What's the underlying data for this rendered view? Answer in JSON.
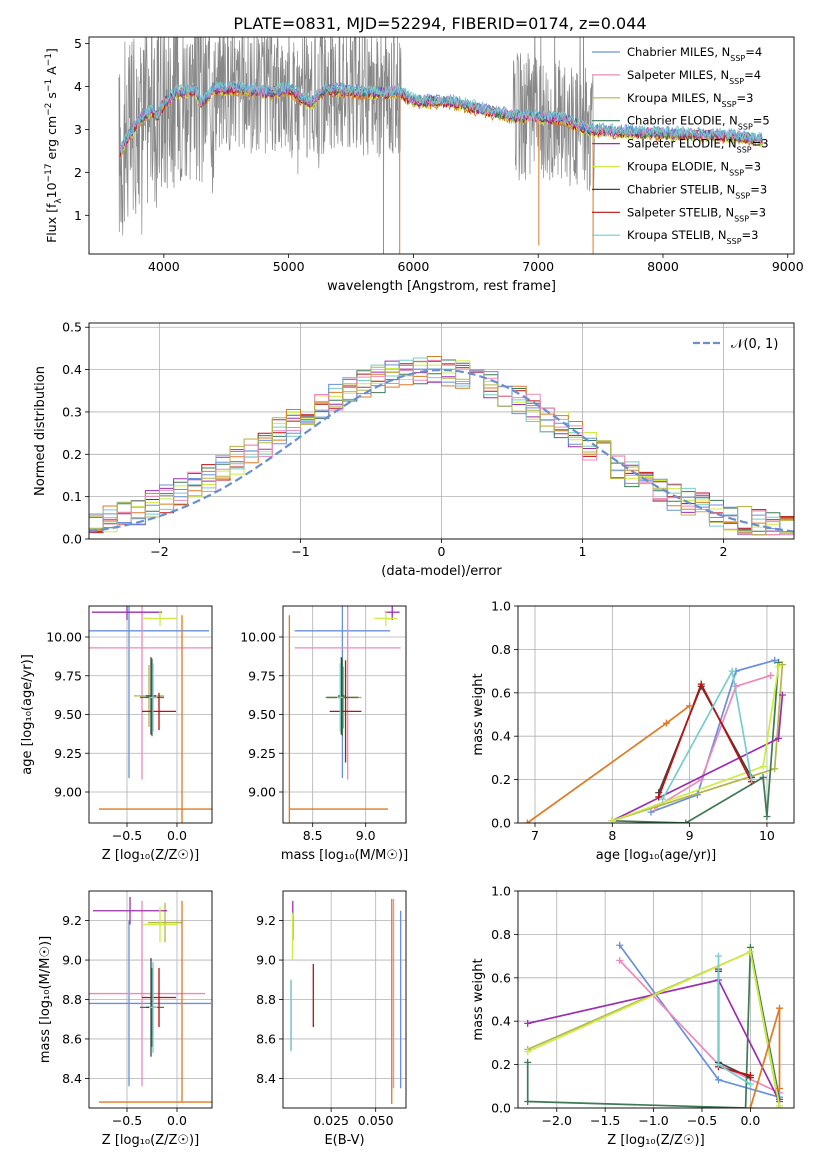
{
  "suptitle": "PLATE=0831, MJD=52294, FIBERID=0174, z=0.044",
  "colors": {
    "c0": "#6890dd",
    "c1": "#ee88bb",
    "c2": "#b5b54a",
    "c3": "#3e7a55",
    "c4": "#9b2fb0",
    "c5": "#ccee44",
    "c6": "#444444",
    "c7": "#bb1111",
    "c8": "#77cccc",
    "data": "#888888",
    "orange": "#e07a20"
  },
  "legend_entries": [
    {
      "pre": "Chabrier MILES, N",
      "sub": "SSP",
      "post": "=4",
      "color": "#6890dd"
    },
    {
      "pre": "Salpeter MILES, N",
      "sub": "SSP",
      "post": "=4",
      "color": "#ee88bb"
    },
    {
      "pre": "Kroupa MILES, N",
      "sub": "SSP",
      "post": "=3",
      "color": "#b5b54a"
    },
    {
      "pre": "Chabrier ELODIE, N",
      "sub": "SSP",
      "post": "=5",
      "color": "#3e7a55"
    },
    {
      "pre": "Salpeter ELODIE, N",
      "sub": "SSP",
      "post": "=3",
      "color": "#9b2fb0"
    },
    {
      "pre": "Kroupa ELODIE, N",
      "sub": "SSP",
      "post": "=3",
      "color": "#ccee44"
    },
    {
      "pre": "Chabrier STELIB, N",
      "sub": "SSP",
      "post": "=3",
      "color": "#444444"
    },
    {
      "pre": "Salpeter STELIB, N",
      "sub": "SSP",
      "post": "=3",
      "color": "#bb1111"
    },
    {
      "pre": "Kroupa STELIB, N",
      "sub": "SSP",
      "post": "=3",
      "color": "#77cccc"
    }
  ],
  "chart_data": [
    {
      "id": "spectrum",
      "type": "line",
      "xlabel": "wavelength [Angstrom, rest frame]",
      "ylabel": {
        "pre": "Flux [f",
        "sub": "λ",
        "mid": "10",
        "sup1": "−17",
        "post": " erg cm",
        "sup2": "−2",
        "post2": " s",
        "sup3": "−1",
        "post3": " A",
        "sup4": "−1",
        "post4": "]"
      },
      "xlim": [
        3400,
        9050
      ],
      "ylim": [
        0.1,
        5.15
      ],
      "xticks": [
        4000,
        5000,
        6000,
        7000,
        8000,
        9000
      ],
      "yticks": [
        1,
        2,
        3,
        4,
        5
      ],
      "continuum_knots": [
        [
          3650,
          2.5
        ],
        [
          3720,
          2.85
        ],
        [
          3800,
          3.2
        ],
        [
          3900,
          3.45
        ],
        [
          3950,
          3.3
        ],
        [
          4000,
          3.6
        ],
        [
          4100,
          3.85
        ],
        [
          4250,
          3.9
        ],
        [
          4300,
          3.6
        ],
        [
          4400,
          3.95
        ],
        [
          4600,
          3.95
        ],
        [
          4860,
          3.85
        ],
        [
          5000,
          3.95
        ],
        [
          5175,
          3.6
        ],
        [
          5300,
          3.95
        ],
        [
          5600,
          3.85
        ],
        [
          5900,
          3.85
        ],
        [
          6000,
          3.65
        ],
        [
          6300,
          3.65
        ],
        [
          6563,
          3.45
        ],
        [
          6800,
          3.3
        ],
        [
          7200,
          3.25
        ],
        [
          7400,
          3.0
        ],
        [
          7600,
          2.95
        ],
        [
          8000,
          2.9
        ],
        [
          8500,
          2.85
        ],
        [
          8800,
          2.75
        ]
      ]
    },
    {
      "id": "residuals",
      "type": "histogram",
      "xlabel": "(data-model)/error",
      "ylabel": "Normed distribution",
      "xlim": [
        -2.5,
        2.5
      ],
      "ylim": [
        0,
        0.51
      ],
      "xticks": [
        -2,
        -1,
        0,
        1,
        2
      ],
      "xtick_labels": [
        "−2",
        "−1",
        "0",
        "1",
        "2"
      ],
      "yticks": [
        0.0,
        0.1,
        0.2,
        0.3,
        0.4,
        0.5
      ],
      "ytick_labels": [
        "0.0",
        "0.1",
        "0.2",
        "0.3",
        "0.4",
        "0.5"
      ],
      "bin_width": 0.1,
      "bin_start": -2.5,
      "reference_label": "𝒩(0, 1)",
      "reference_color": "#6a8fd0"
    },
    {
      "id": "z-vs-age",
      "type": "errorbar",
      "xlabel": "Z [log₁₀(Z/Z☉)]",
      "ylabel": "age  [log₁₀(age/yr)]",
      "xlim": [
        -0.88,
        0.35
      ],
      "ylim": [
        8.8,
        10.2
      ],
      "xticks": [
        -0.5,
        0.0
      ],
      "xtick_labels": [
        "−0.5",
        "0.0"
      ],
      "yticks": [
        9.0,
        9.25,
        9.5,
        9.75,
        10.0
      ],
      "ytick_labels": [
        "9.00",
        "9.25",
        "9.50",
        "9.75",
        "10.00"
      ],
      "points": [
        {
          "x": -0.48,
          "xerr": 0.8,
          "y": 10.04,
          "yerr": 0.95,
          "color": "#6890dd"
        },
        {
          "x": -0.35,
          "xerr": 0.7,
          "y": 9.93,
          "yerr": 0.85,
          "color": "#ee88bb"
        },
        {
          "x": -0.28,
          "xerr": 0.15,
          "y": 9.62,
          "yerr": 0.2,
          "color": "#b5b54a"
        },
        {
          "x": -0.25,
          "xerr": 0.12,
          "y": 9.61,
          "yerr": 0.25,
          "color": "#3e7a55"
        },
        {
          "x": -0.5,
          "xerr": 0.35,
          "y": 10.16,
          "yerr": 0.05,
          "color": "#9b2fb0"
        },
        {
          "x": -0.17,
          "xerr": 0.17,
          "y": 10.12,
          "yerr": 0.05,
          "color": "#ccee44"
        },
        {
          "x": -0.26,
          "xerr": 0.05,
          "y": 9.62,
          "yerr": 0.25,
          "color": "#444444"
        },
        {
          "x": -0.18,
          "xerr": 0.17,
          "y": 9.52,
          "yerr": 0.12,
          "color": "#bb1111"
        },
        {
          "x": -0.24,
          "xerr": 0.04,
          "y": 9.61,
          "yerr": 0.22,
          "color": "#77cccc"
        },
        {
          "x": 0.05,
          "xerr": 0.83,
          "y": 8.89,
          "yerr": 1.25,
          "color": "#e07a20"
        }
      ]
    },
    {
      "id": "mass-vs-age",
      "type": "errorbar",
      "xlabel": "mass [log₁₀(M/M☉)]",
      "ylabel": "",
      "xlim": [
        8.22,
        9.38
      ],
      "ylim": [
        8.8,
        10.2
      ],
      "xticks": [
        8.5,
        9.0
      ],
      "xtick_labels": [
        "8.5",
        "9.0"
      ],
      "yticks": [
        9.0,
        9.25,
        9.5,
        9.75,
        10.0
      ],
      "ytick_labels": [
        "9.00",
        "9.25",
        "9.50",
        "9.75",
        "10.00"
      ],
      "points": [
        {
          "x": 8.78,
          "xerr": 0.45,
          "y": 10.04,
          "yerr": 0.95,
          "color": "#6890dd"
        },
        {
          "x": 8.83,
          "xerr": 0.5,
          "y": 9.93,
          "yerr": 0.85,
          "color": "#ee88bb"
        },
        {
          "x": 8.79,
          "xerr": 0.17,
          "y": 9.61,
          "yerr": 0.2,
          "color": "#b5b54a"
        },
        {
          "x": 8.78,
          "xerr": 0.15,
          "y": 9.61,
          "yerr": 0.25,
          "color": "#3e7a55"
        },
        {
          "x": 9.25,
          "xerr": 0.07,
          "y": 10.16,
          "yerr": 0.05,
          "color": "#9b2fb0"
        },
        {
          "x": 9.19,
          "xerr": 0.11,
          "y": 10.12,
          "yerr": 0.05,
          "color": "#ccee44"
        },
        {
          "x": 8.77,
          "xerr": 0.03,
          "y": 9.62,
          "yerr": 0.25,
          "color": "#444444"
        },
        {
          "x": 8.81,
          "xerr": 0.15,
          "y": 9.52,
          "yerr": 0.33,
          "color": "#bb1111"
        },
        {
          "x": 8.76,
          "xerr": 0.03,
          "y": 9.61,
          "yerr": 0.22,
          "color": "#77cccc"
        },
        {
          "x": 8.28,
          "xerr": 0.0,
          "y": 8.89,
          "yerr": 1.25,
          "color": "#e07a20",
          "xerr_right": 0.93
        }
      ]
    },
    {
      "id": "age-vs-weight",
      "type": "line",
      "xlabel": "age  [log₁₀(age/yr)]",
      "ylabel": "mass weight",
      "xlim": [
        6.78,
        10.35
      ],
      "ylim": [
        0.0,
        1.0
      ],
      "xticks": [
        7,
        8,
        9,
        10
      ],
      "yticks": [
        0.0,
        0.2,
        0.4,
        0.6,
        0.8,
        1.0
      ],
      "ytick_labels": [
        "0.0",
        "0.2",
        "0.4",
        "0.6",
        "0.8",
        "1.0"
      ],
      "series": [
        {
          "color": "#6890dd",
          "points": [
            [
              8.5,
              0.05
            ],
            [
              9.1,
              0.13
            ],
            [
              9.6,
              0.7
            ],
            [
              10.1,
              0.75
            ]
          ]
        },
        {
          "color": "#ee88bb",
          "points": [
            [
              8.55,
              0.07
            ],
            [
              9.15,
              0.2
            ],
            [
              9.6,
              0.63
            ],
            [
              10.05,
              0.68
            ]
          ]
        },
        {
          "color": "#b5b54a",
          "points": [
            [
              8.0,
              0.01
            ],
            [
              10.1,
              0.25
            ],
            [
              10.2,
              0.73
            ]
          ]
        },
        {
          "color": "#3e7a55",
          "points": [
            [
              8.0,
              0.01
            ],
            [
              8.95,
              0.0
            ],
            [
              9.95,
              0.21
            ],
            [
              10.0,
              0.03
            ],
            [
              10.15,
              0.74
            ]
          ]
        },
        {
          "color": "#9b2fb0",
          "points": [
            [
              8.0,
              0.01
            ],
            [
              10.15,
              0.39
            ],
            [
              10.2,
              0.59
            ]
          ]
        },
        {
          "color": "#ccee44",
          "points": [
            [
              8.0,
              0.01
            ],
            [
              9.95,
              0.26
            ],
            [
              10.15,
              0.72
            ]
          ]
        },
        {
          "color": "#444444",
          "points": [
            [
              8.6,
              0.14
            ],
            [
              9.15,
              0.63
            ],
            [
              9.8,
              0.21
            ]
          ]
        },
        {
          "color": "#bb1111",
          "points": [
            [
              8.6,
              0.12
            ],
            [
              9.15,
              0.64
            ],
            [
              9.8,
              0.19
            ]
          ]
        },
        {
          "color": "#77cccc",
          "points": [
            [
              8.65,
              0.11
            ],
            [
              9.55,
              0.7
            ],
            [
              9.8,
              0.2
            ]
          ]
        },
        {
          "color": "#e07a20",
          "points": [
            [
              6.9,
              0.0
            ],
            [
              8.7,
              0.46
            ],
            [
              9.0,
              0.54
            ]
          ]
        }
      ]
    },
    {
      "id": "z-vs-mass",
      "type": "errorbar",
      "xlabel": "Z [log₁₀(Z/Z☉)]",
      "ylabel": "mass [log₁₀(M/M☉)]",
      "xlim": [
        -0.88,
        0.35
      ],
      "ylim": [
        8.25,
        9.35
      ],
      "xticks": [
        -0.5,
        0.0
      ],
      "xtick_labels": [
        "−0.5",
        "0.0"
      ],
      "yticks": [
        8.4,
        8.6,
        8.8,
        9.0,
        9.2
      ],
      "ytick_labels": [
        "8.4",
        "8.6",
        "8.8",
        "9.0",
        "9.2"
      ],
      "points": [
        {
          "x": -0.48,
          "xerr": 0.82,
          "y": 8.78,
          "yerr": 0.42,
          "color": "#6890dd"
        },
        {
          "x": -0.35,
          "xerr": 0.63,
          "y": 8.83,
          "yerr": 0.47,
          "color": "#ee88bb"
        },
        {
          "x": -0.12,
          "xerr": 0.17,
          "y": 9.19,
          "yerr": 0.1,
          "color": "#b5b54a"
        },
        {
          "x": -0.25,
          "xerr": 0.12,
          "y": 8.76,
          "yerr": 0.2,
          "color": "#3e7a55"
        },
        {
          "x": -0.47,
          "xerr": 0.37,
          "y": 9.25,
          "yerr": 0.07,
          "color": "#9b2fb0"
        },
        {
          "x": -0.17,
          "xerr": 0.17,
          "y": 9.18,
          "yerr": 0.09,
          "color": "#ccee44"
        },
        {
          "x": -0.26,
          "xerr": 0.05,
          "y": 8.76,
          "yerr": 0.25,
          "color": "#444444"
        },
        {
          "x": -0.18,
          "xerr": 0.17,
          "y": 8.81,
          "yerr": 0.15,
          "color": "#bb1111"
        },
        {
          "x": -0.24,
          "xerr": 0.04,
          "y": 8.76,
          "yerr": 0.23,
          "color": "#77cccc"
        },
        {
          "x": 0.05,
          "xerr": 0.83,
          "y": 8.28,
          "yerr": 1.02,
          "color": "#e07a20",
          "yerr_down": 0.0
        }
      ]
    },
    {
      "id": "ebv-vs-mass",
      "type": "errorbar",
      "xlabel": "E(B-V)",
      "ylabel": "",
      "xlim": [
        -0.002,
        0.067
      ],
      "ylim": [
        8.25,
        9.35
      ],
      "xticks": [
        0.025,
        0.05
      ],
      "xtick_labels": [
        "0.025",
        "0.050"
      ],
      "yticks": [
        8.4,
        8.6,
        8.8,
        9.0,
        9.2
      ],
      "ytick_labels": [
        "8.4",
        "8.6",
        "8.8",
        "9.0",
        "9.2"
      ],
      "points": [
        {
          "x": 0.0025,
          "xerr": 0,
          "y": 8.72,
          "yerr": 0.18,
          "color": "#6890dd"
        },
        {
          "x": 0.0035,
          "xerr": 0,
          "y": 9.2,
          "yerr": 0.1,
          "color": "#9b2fb0"
        },
        {
          "x": 0.0033,
          "xerr": 0,
          "y": 9.12,
          "yerr": 0.12,
          "color": "#ccee44"
        },
        {
          "x": 0.0025,
          "xerr": 0,
          "y": 8.72,
          "yerr": 0.18,
          "color": "#77cccc"
        },
        {
          "x": 0.015,
          "xerr": 0,
          "y": 8.82,
          "yerr": 0.16,
          "color": "#bb1111"
        },
        {
          "x": 0.059,
          "xerr": 0,
          "y": 8.79,
          "yerr": 0.52,
          "color": "#e07a20"
        },
        {
          "x": 0.06,
          "xerr": 0,
          "y": 8.83,
          "yerr": 0.48,
          "color": "#ee88bb"
        },
        {
          "x": 0.064,
          "xerr": 0,
          "y": 8.8,
          "yerr": 0.45,
          "color": "#6890dd"
        }
      ]
    },
    {
      "id": "z-vs-weight",
      "type": "line",
      "xlabel": "Z [log₁₀(Z/Z☉)]",
      "ylabel": "mass weight",
      "xlim": [
        -2.4,
        0.45
      ],
      "ylim": [
        0.0,
        1.0
      ],
      "xticks": [
        -2.0,
        -1.5,
        -1.0,
        -0.5,
        0.0
      ],
      "xtick_labels": [
        "−2.0",
        "−1.5",
        "−1.0",
        "−0.5",
        "0.0"
      ],
      "yticks": [
        0.0,
        0.2,
        0.4,
        0.6,
        0.8,
        1.0
      ],
      "ytick_labels": [
        "0.0",
        "0.2",
        "0.4",
        "0.6",
        "0.8",
        "1.0"
      ],
      "series": [
        {
          "color": "#6890dd",
          "points": [
            [
              -1.35,
              0.75
            ],
            [
              -0.33,
              0.13
            ],
            [
              0.3,
              0.05
            ]
          ]
        },
        {
          "color": "#ee88bb",
          "points": [
            [
              -1.35,
              0.68
            ],
            [
              -0.33,
              0.2
            ],
            [
              0.3,
              0.07
            ]
          ]
        },
        {
          "color": "#b5b54a",
          "points": [
            [
              -2.3,
              0.27
            ],
            [
              0.0,
              0.72
            ],
            [
              0.3,
              0.0
            ]
          ]
        },
        {
          "color": "#3e7a55",
          "points": [
            [
              -2.3,
              0.21
            ],
            [
              -2.3,
              0.03
            ],
            [
              -0.05,
              0.0
            ],
            [
              0.0,
              0.74
            ],
            [
              0.3,
              0.04
            ]
          ]
        },
        {
          "color": "#9b2fb0",
          "points": [
            [
              -2.3,
              0.39
            ],
            [
              -0.33,
              0.59
            ],
            [
              0.3,
              0.03
            ]
          ]
        },
        {
          "color": "#ccee44",
          "points": [
            [
              -2.3,
              0.26
            ],
            [
              0.0,
              0.72
            ],
            [
              0.3,
              0.01
            ]
          ]
        },
        {
          "color": "#444444",
          "points": [
            [
              -0.33,
              0.63
            ],
            [
              -0.33,
              0.21
            ],
            [
              0.0,
              0.14
            ]
          ]
        },
        {
          "color": "#bb1111",
          "points": [
            [
              -0.33,
              0.64
            ],
            [
              -0.33,
              0.19
            ],
            [
              0.0,
              0.15
            ]
          ]
        },
        {
          "color": "#77cccc",
          "points": [
            [
              -0.33,
              0.7
            ],
            [
              -0.33,
              0.2
            ],
            [
              0.0,
              0.11
            ]
          ]
        },
        {
          "color": "#e07a20",
          "points": [
            [
              0.0,
              0.0
            ],
            [
              0.3,
              0.46
            ],
            [
              0.3,
              0.09
            ]
          ]
        }
      ]
    }
  ]
}
